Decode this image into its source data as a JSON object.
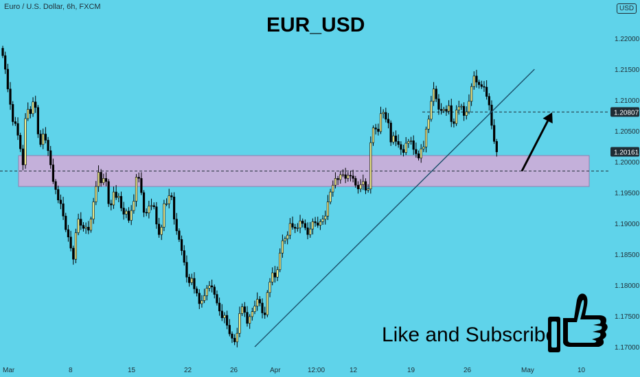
{
  "header": {
    "symbol_line": "Euro / U.S. Dollar, 6h, FXCM",
    "title": "EUR_USD",
    "currency": "USD"
  },
  "overlay": {
    "cta_text": "Like and Subscribe",
    "cta_icon": "thumbs-up-icon"
  },
  "colors": {
    "background": "#5fd3ea",
    "candle_up": "#f6f08c",
    "candle_down": "#000000",
    "zone_fill": "#c4b0da",
    "trendline": "#1b4f6a",
    "price_label_bg": "#1f2d35"
  },
  "chart_data": {
    "type": "candlestick",
    "instrument": "EUR/USD",
    "timeframe": "6h",
    "yaxis": {
      "ticks": [
        "1.22000",
        "1.21500",
        "1.21000",
        "1.20500",
        "1.20000",
        "1.19500",
        "1.19000",
        "1.18500",
        "1.18000",
        "1.17500",
        "1.17000"
      ],
      "range": [
        1.169,
        1.2245
      ]
    },
    "xaxis": {
      "ticks": [
        "Mar",
        "8",
        "15",
        "22",
        "26",
        "Apr",
        "12:00",
        "12",
        "19",
        "26",
        "May",
        "10"
      ]
    },
    "price_labels": [
      "1.20807",
      "1.20161"
    ],
    "levels": [
      {
        "value": 1.20807,
        "style": "dashed"
      },
      {
        "value": 1.1985,
        "style": "dashed"
      }
    ],
    "zone": {
      "low": 1.196,
      "high": 1.201
    },
    "trendline": {
      "from": {
        "x_index": 100,
        "y": 1.17
      },
      "to": {
        "x_index": 211,
        "y": 1.215
      }
    },
    "arrow": {
      "from": {
        "x_index": 206,
        "y": 1.1985
      },
      "to": {
        "x_index": 218,
        "y": 1.208
      }
    },
    "series": [
      {
        "close": [
          1.2172,
          1.215,
          1.2118,
          1.2093,
          1.2065,
          1.2062,
          1.2043,
          1.2021,
          1.1995,
          1.207,
          1.2085,
          1.2078,
          1.2097,
          1.2088,
          1.2045,
          1.2028,
          1.2045,
          1.2035,
          1.2018,
          1.1995,
          1.1968,
          1.1955,
          1.1938,
          1.1932,
          1.1912,
          1.189,
          1.1878,
          1.186,
          1.1842,
          1.1885,
          1.1907,
          1.1897,
          1.1892,
          1.1894,
          1.1889,
          1.1907,
          1.1935,
          1.196,
          1.1983,
          1.1966,
          1.1973,
          1.1968,
          1.1932,
          1.193,
          1.1951,
          1.1942,
          1.1944,
          1.1925,
          1.1915,
          1.192,
          1.1905,
          1.1921,
          1.1936,
          1.1975,
          1.1973,
          1.195,
          1.1918,
          1.1917,
          1.1928,
          1.1929,
          1.1927,
          1.1899,
          1.1882,
          1.1894,
          1.1932,
          1.1932,
          1.1945,
          1.1943,
          1.1907,
          1.1888,
          1.1874,
          1.1856,
          1.1837,
          1.1813,
          1.1804,
          1.1811,
          1.1794,
          1.1787,
          1.177,
          1.1775,
          1.1783,
          1.1795,
          1.1799,
          1.1797,
          1.1785,
          1.1771,
          1.1758,
          1.1747,
          1.1751,
          1.1735,
          1.1721,
          1.1714,
          1.1708,
          1.1722,
          1.1754,
          1.1765,
          1.1756,
          1.1738,
          1.1749,
          1.1757,
          1.1766,
          1.1777,
          1.1771,
          1.1755,
          1.1752,
          1.1788,
          1.1805,
          1.182,
          1.1813,
          1.1825,
          1.1852,
          1.1872,
          1.1875,
          1.1881,
          1.19,
          1.1894,
          1.1892,
          1.1893,
          1.1904,
          1.19,
          1.1893,
          1.1882,
          1.1891,
          1.1903,
          1.1901,
          1.1897,
          1.1903,
          1.1907,
          1.1912,
          1.1935,
          1.1951,
          1.1962,
          1.1973,
          1.1971,
          1.1979,
          1.1979,
          1.1973,
          1.1978,
          1.1977,
          1.1973,
          1.1962,
          1.1956,
          1.1963,
          1.1968,
          1.1954,
          1.1956,
          1.2031,
          1.2055,
          1.2053,
          1.2049,
          1.2078,
          1.208,
          1.2069,
          1.2063,
          1.2032,
          1.2042,
          1.2033,
          1.2028,
          1.202,
          1.2015,
          1.203,
          1.2033,
          1.2034,
          1.202,
          1.2013,
          1.2006,
          1.2021,
          1.2024,
          1.2053,
          1.2069,
          1.2098,
          1.2118,
          1.2102,
          1.2085,
          1.2083,
          1.2085,
          1.2082,
          1.2091,
          1.2065,
          1.2062,
          1.2084,
          1.2089,
          1.209,
          1.2075,
          1.2081,
          1.2098,
          1.2122,
          1.2139,
          1.2129,
          1.2125,
          1.2122,
          1.2121,
          1.2106,
          1.2092,
          1.2059,
          1.2033,
          1.2016
        ]
      }
    ]
  }
}
